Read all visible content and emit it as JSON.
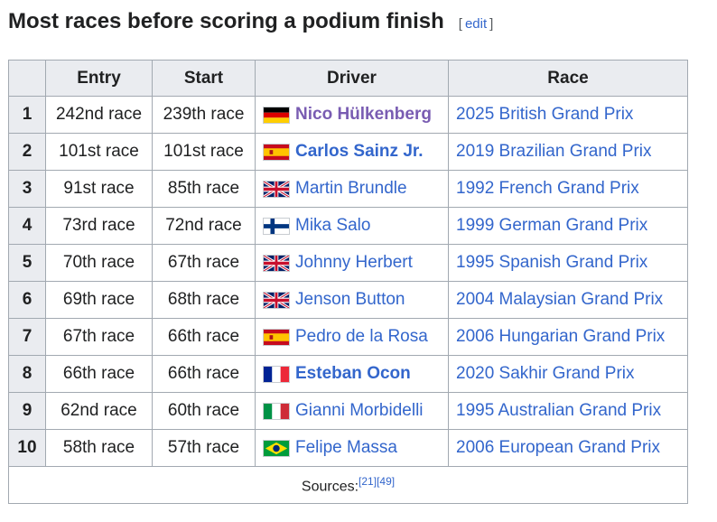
{
  "section": {
    "title": "Most races before scoring a podium finish",
    "edit_open": "[",
    "edit_label": "edit",
    "edit_close": "]"
  },
  "table": {
    "headers": [
      "Entry",
      "Start",
      "Driver",
      "Race"
    ],
    "rows": [
      {
        "rank": "1",
        "entry": "242nd race",
        "start": "239th race",
        "driver": "Nico Hülkenberg",
        "race": "2025 British Grand Prix",
        "flag": "germany-flag",
        "bold": true,
        "visited": true
      },
      {
        "rank": "2",
        "entry": "101st race",
        "start": "101st race",
        "driver": "Carlos Sainz Jr.",
        "race": "2019 Brazilian Grand Prix",
        "flag": "spain-flag",
        "bold": true,
        "visited": false
      },
      {
        "rank": "3",
        "entry": "91st race",
        "start": "85th race",
        "driver": "Martin Brundle",
        "race": "1992 French Grand Prix",
        "flag": "uk-flag",
        "bold": false,
        "visited": false
      },
      {
        "rank": "4",
        "entry": "73rd race",
        "start": "72nd race",
        "driver": "Mika Salo",
        "race": "1999 German Grand Prix",
        "flag": "finland-flag",
        "bold": false,
        "visited": false
      },
      {
        "rank": "5",
        "entry": "70th race",
        "start": "67th race",
        "driver": "Johnny Herbert",
        "race": "1995 Spanish Grand Prix",
        "flag": "uk-flag",
        "bold": false,
        "visited": false
      },
      {
        "rank": "6",
        "entry": "69th race",
        "start": "68th race",
        "driver": "Jenson Button",
        "race": "2004 Malaysian Grand Prix",
        "flag": "uk-flag",
        "bold": false,
        "visited": false
      },
      {
        "rank": "7",
        "entry": "67th race",
        "start": "66th race",
        "driver": "Pedro de la Rosa",
        "race": "2006 Hungarian Grand Prix",
        "flag": "spain-flag",
        "bold": false,
        "visited": false
      },
      {
        "rank": "8",
        "entry": "66th race",
        "start": "66th race",
        "driver": "Esteban Ocon",
        "race": "2020 Sakhir Grand Prix",
        "flag": "france-flag",
        "bold": true,
        "visited": false
      },
      {
        "rank": "9",
        "entry": "62nd race",
        "start": "60th race",
        "driver": "Gianni Morbidelli",
        "race": "1995 Australian Grand Prix",
        "flag": "italy-flag",
        "bold": false,
        "visited": false
      },
      {
        "rank": "10",
        "entry": "58th race",
        "start": "57th race",
        "driver": "Felipe Massa",
        "race": "2006 European Grand Prix",
        "flag": "brazil-flag",
        "bold": false,
        "visited": false
      }
    ],
    "footer": {
      "label": "Sources:",
      "refs": [
        "[21]",
        "[49]"
      ]
    }
  },
  "colors": {
    "link": "#3366cc",
    "visited": "#795cb2",
    "header_bg": "#eaecf0",
    "border": "#a2a9b1"
  }
}
